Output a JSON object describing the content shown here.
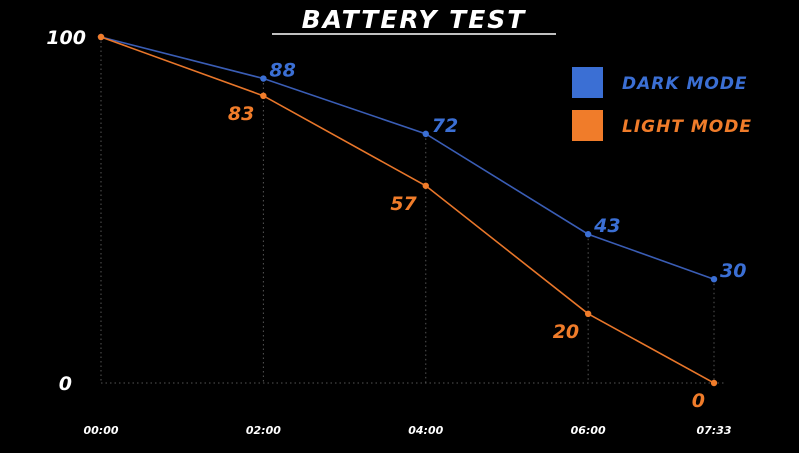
{
  "chart_data": {
    "type": "line",
    "title": "BATTERY TEST",
    "xlabel": "",
    "ylabel": "",
    "x": [
      "00:00",
      "02:00",
      "04:00",
      "06:00",
      "07:33"
    ],
    "x_minutes": [
      0,
      120,
      240,
      360,
      453
    ],
    "ylim": [
      0,
      100
    ],
    "yticks": [
      "100",
      "0"
    ],
    "grid": "dotted vertical at data points, dotted baseline at 0",
    "legend_position": "top-right",
    "series": [
      {
        "name": "DARK MODE",
        "color": "#3b6fd4",
        "line_color": "#3a5db5",
        "values": [
          100,
          88,
          72,
          43,
          30
        ],
        "labels": [
          "",
          "88",
          "72",
          "43",
          "30"
        ]
      },
      {
        "name": "LIGHT MODE",
        "color": "#f07c2a",
        "line_color": "#e8762a",
        "values": [
          100,
          83,
          57,
          20,
          0
        ],
        "labels": [
          "",
          "83",
          "57",
          "20",
          "0"
        ]
      }
    ]
  }
}
